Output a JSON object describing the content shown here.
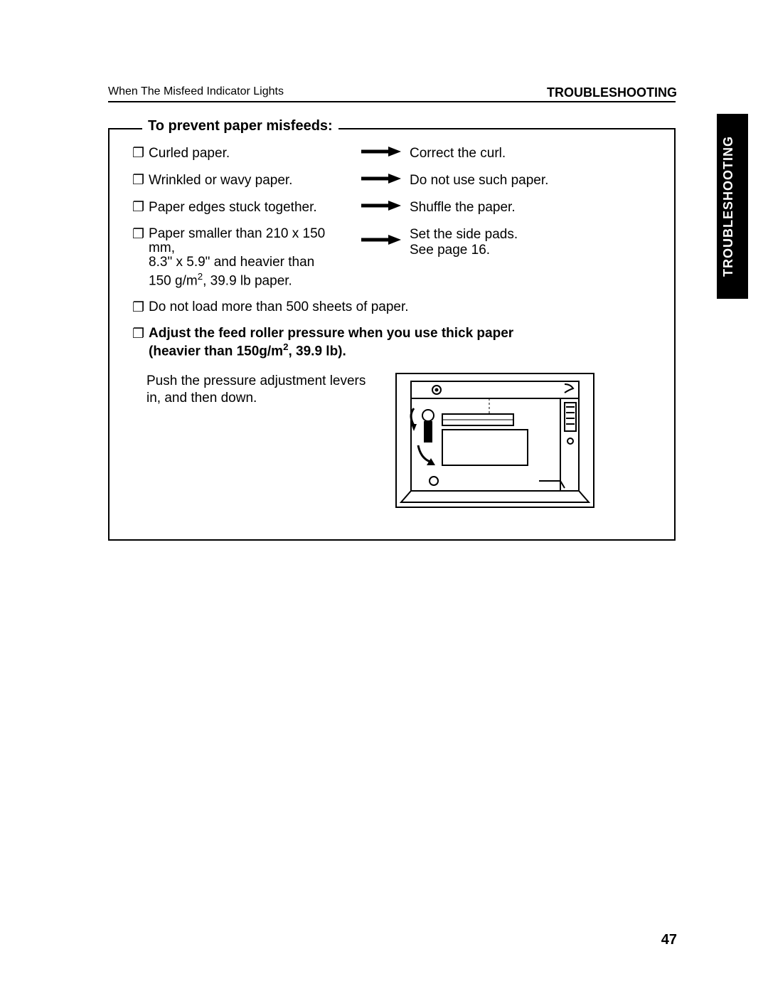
{
  "header": {
    "left": "When The Misfeed Indicator Lights",
    "right": "TROUBLESHOOTING"
  },
  "side_tab": "TROUBLESHOOTING",
  "box_title": "To prevent paper misfeeds:",
  "rows": [
    {
      "cause": "Curled paper.",
      "solution": "Correct the curl."
    },
    {
      "cause": "Wrinkled or wavy paper.",
      "solution": "Do not use such paper."
    },
    {
      "cause": "Paper edges stuck together.",
      "solution": "Shuffle the paper."
    },
    {
      "cause_html": "Paper smaller than 210 x 150 mm,<br>8.3\" x 5.9\" and heavier than<br>150 g/m<sup>2</sup>, 39.9 lb paper.",
      "solution_html": "Set the side pads.<br>See page 16."
    }
  ],
  "single": "Do not load more than 500 sheets of paper.",
  "bold_html": "Adjust the feed roller pressure when you use thick paper<br>(heavier than 150g/m<sup>2</sup>, 39.9 lb).",
  "instruction": "Push the pressure adjustment levers in, and then down.",
  "page_number": "47",
  "checkbox_glyph": "❐",
  "colors": {
    "text": "#000000",
    "bg": "#ffffff",
    "tab_bg": "#000000",
    "tab_text": "#ffffff"
  }
}
